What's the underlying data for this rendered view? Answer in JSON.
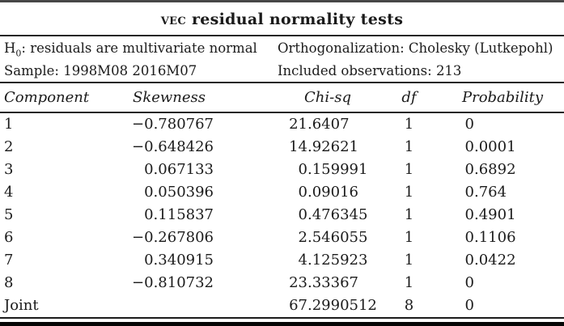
{
  "page": {
    "background": "#ffffff",
    "text_color": "#1b1b1b",
    "rule_color": "#2e2e2e"
  },
  "title": {
    "prefix_smallcaps": "VEC",
    "rest": " residual normality tests"
  },
  "info": {
    "h0_prefix": "H",
    "h0_subscript": "0",
    "h0_rest": ": residuals are multivariate normal",
    "sample_line": "Sample: 1998M08 2016M07",
    "orthogonalization_line": "Orthogonalization: Cholesky (Lutkepohl)",
    "observations_line": "Included observations: 213"
  },
  "table": {
    "headers": [
      "Component",
      "Skewness",
      "Chi-sq",
      "df",
      "Probability"
    ],
    "rows": [
      {
        "component": "1",
        "skewness": "−0.780767",
        "chi_sq": "21.6407",
        "df": "1",
        "probability": "0"
      },
      {
        "component": "2",
        "skewness": "−0.648426",
        "chi_sq": "14.92621",
        "df": "1",
        "probability": "0.0001"
      },
      {
        "component": "3",
        "skewness": "0.067133",
        "chi_sq": "0.159991",
        "df": "1",
        "probability": "0.6892"
      },
      {
        "component": "4",
        "skewness": "0.050396",
        "chi_sq": "0.09016",
        "df": "1",
        "probability": "0.764"
      },
      {
        "component": "5",
        "skewness": "0.115837",
        "chi_sq": "0.476345",
        "df": "1",
        "probability": "0.4901"
      },
      {
        "component": "6",
        "skewness": "−0.267806",
        "chi_sq": "2.546055",
        "df": "1",
        "probability": "0.1106"
      },
      {
        "component": "7",
        "skewness": "0.340915",
        "chi_sq": "4.125923",
        "df": "1",
        "probability": "0.0422"
      },
      {
        "component": "8",
        "skewness": "−0.810732",
        "chi_sq": "23.33367",
        "df": "1",
        "probability": "0"
      },
      {
        "component": "Joint",
        "skewness": "",
        "chi_sq": "67.2990512",
        "df": "8",
        "probability": "0"
      }
    ]
  }
}
